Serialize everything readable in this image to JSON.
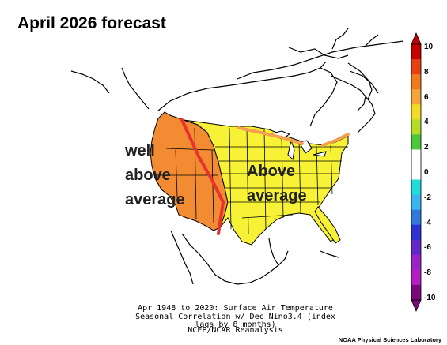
{
  "title": "April 2026 forecast",
  "annotations": {
    "west": [
      "well",
      "above",
      "average"
    ],
    "east": [
      "Above",
      "average"
    ]
  },
  "caption": {
    "line1": "Apr 1948 to 2020: Surface Air Temperature",
    "line2": "Seasonal Correlation w/ Dec Nino3.4 (index lags by 8 months)",
    "line3": "NCEP/NCAR Reanalysis"
  },
  "credit": "NOAA Physical Sciences Laboratory",
  "colorbar": {
    "ticks": [
      "10",
      "8",
      "6",
      "4",
      "2",
      "0",
      "-2",
      "-4",
      "-6",
      "-8",
      "-10"
    ],
    "colors": [
      "#c40000",
      "#e84010",
      "#f07a22",
      "#f4a43a",
      "#f0dc22",
      "#b4dc28",
      "#4cc83c",
      "#ffffff",
      "#ffffff",
      "#22dcdc",
      "#3cb4f0",
      "#3278dc",
      "#2d32d2",
      "#6428c8",
      "#9a23c8",
      "#b41ebe",
      "#780a78"
    ]
  },
  "map_colors": {
    "well_above": "#f38b32",
    "above": "#f7f236",
    "boundary": "#e8322d",
    "border_line": "#f5a050"
  }
}
